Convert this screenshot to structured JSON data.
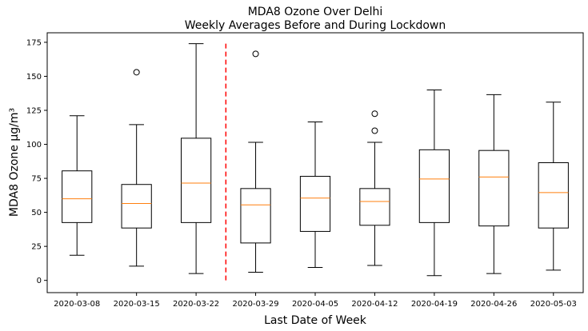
{
  "chart_data": {
    "type": "box",
    "title": "MDA8 Ozone Over Delhi",
    "subtitle": "Weekly Averages Before and During Lockdown",
    "xlabel": "Last Date of Week",
    "ylabel": "MDA8 Ozone μg/m³",
    "ylim": [
      -9,
      182
    ],
    "yticks": [
      0,
      25,
      50,
      75,
      100,
      125,
      150,
      175
    ],
    "grid": false,
    "categories": [
      "2020-03-08",
      "2020-03-15",
      "2020-03-22",
      "2020-03-29",
      "2020-04-05",
      "2020-04-12",
      "2020-04-19",
      "2020-04-26",
      "2020-05-03"
    ],
    "boxes": [
      {
        "whislo": 18.5,
        "q1": 42.5,
        "med": 60,
        "q3": 80.5,
        "whishi": 121,
        "fliers": []
      },
      {
        "whislo": 10.5,
        "q1": 38.5,
        "med": 56.5,
        "q3": 70.5,
        "whishi": 114.5,
        "fliers": [
          153
        ]
      },
      {
        "whislo": 5,
        "q1": 42.5,
        "med": 71.5,
        "q3": 104.5,
        "whishi": 174,
        "fliers": []
      },
      {
        "whislo": 6,
        "q1": 27.5,
        "med": 55.5,
        "q3": 67.5,
        "whishi": 101.5,
        "fliers": [
          166.5
        ]
      },
      {
        "whislo": 9.5,
        "q1": 36,
        "med": 60.5,
        "q3": 76.5,
        "whishi": 116.5,
        "fliers": []
      },
      {
        "whislo": 11,
        "q1": 40.5,
        "med": 58,
        "q3": 67.5,
        "whishi": 101.5,
        "fliers": [
          110,
          122.5
        ]
      },
      {
        "whislo": 3.5,
        "q1": 42.5,
        "med": 74.5,
        "q3": 96,
        "whishi": 140,
        "fliers": []
      },
      {
        "whislo": 5,
        "q1": 40,
        "med": 76,
        "q3": 95.5,
        "whishi": 136.5,
        "fliers": []
      },
      {
        "whislo": 7.5,
        "q1": 38.5,
        "med": 64.5,
        "q3": 86.5,
        "whishi": 131,
        "fliers": []
      }
    ],
    "reference_line": {
      "after_category_index": 2.5,
      "from": 0,
      "to": 174,
      "style": "dashed",
      "color": "#ff0000"
    },
    "colors": {
      "box": "#000000",
      "median": "#ff7f0e",
      "flier": "#000000",
      "reference": "#ff0000"
    }
  }
}
